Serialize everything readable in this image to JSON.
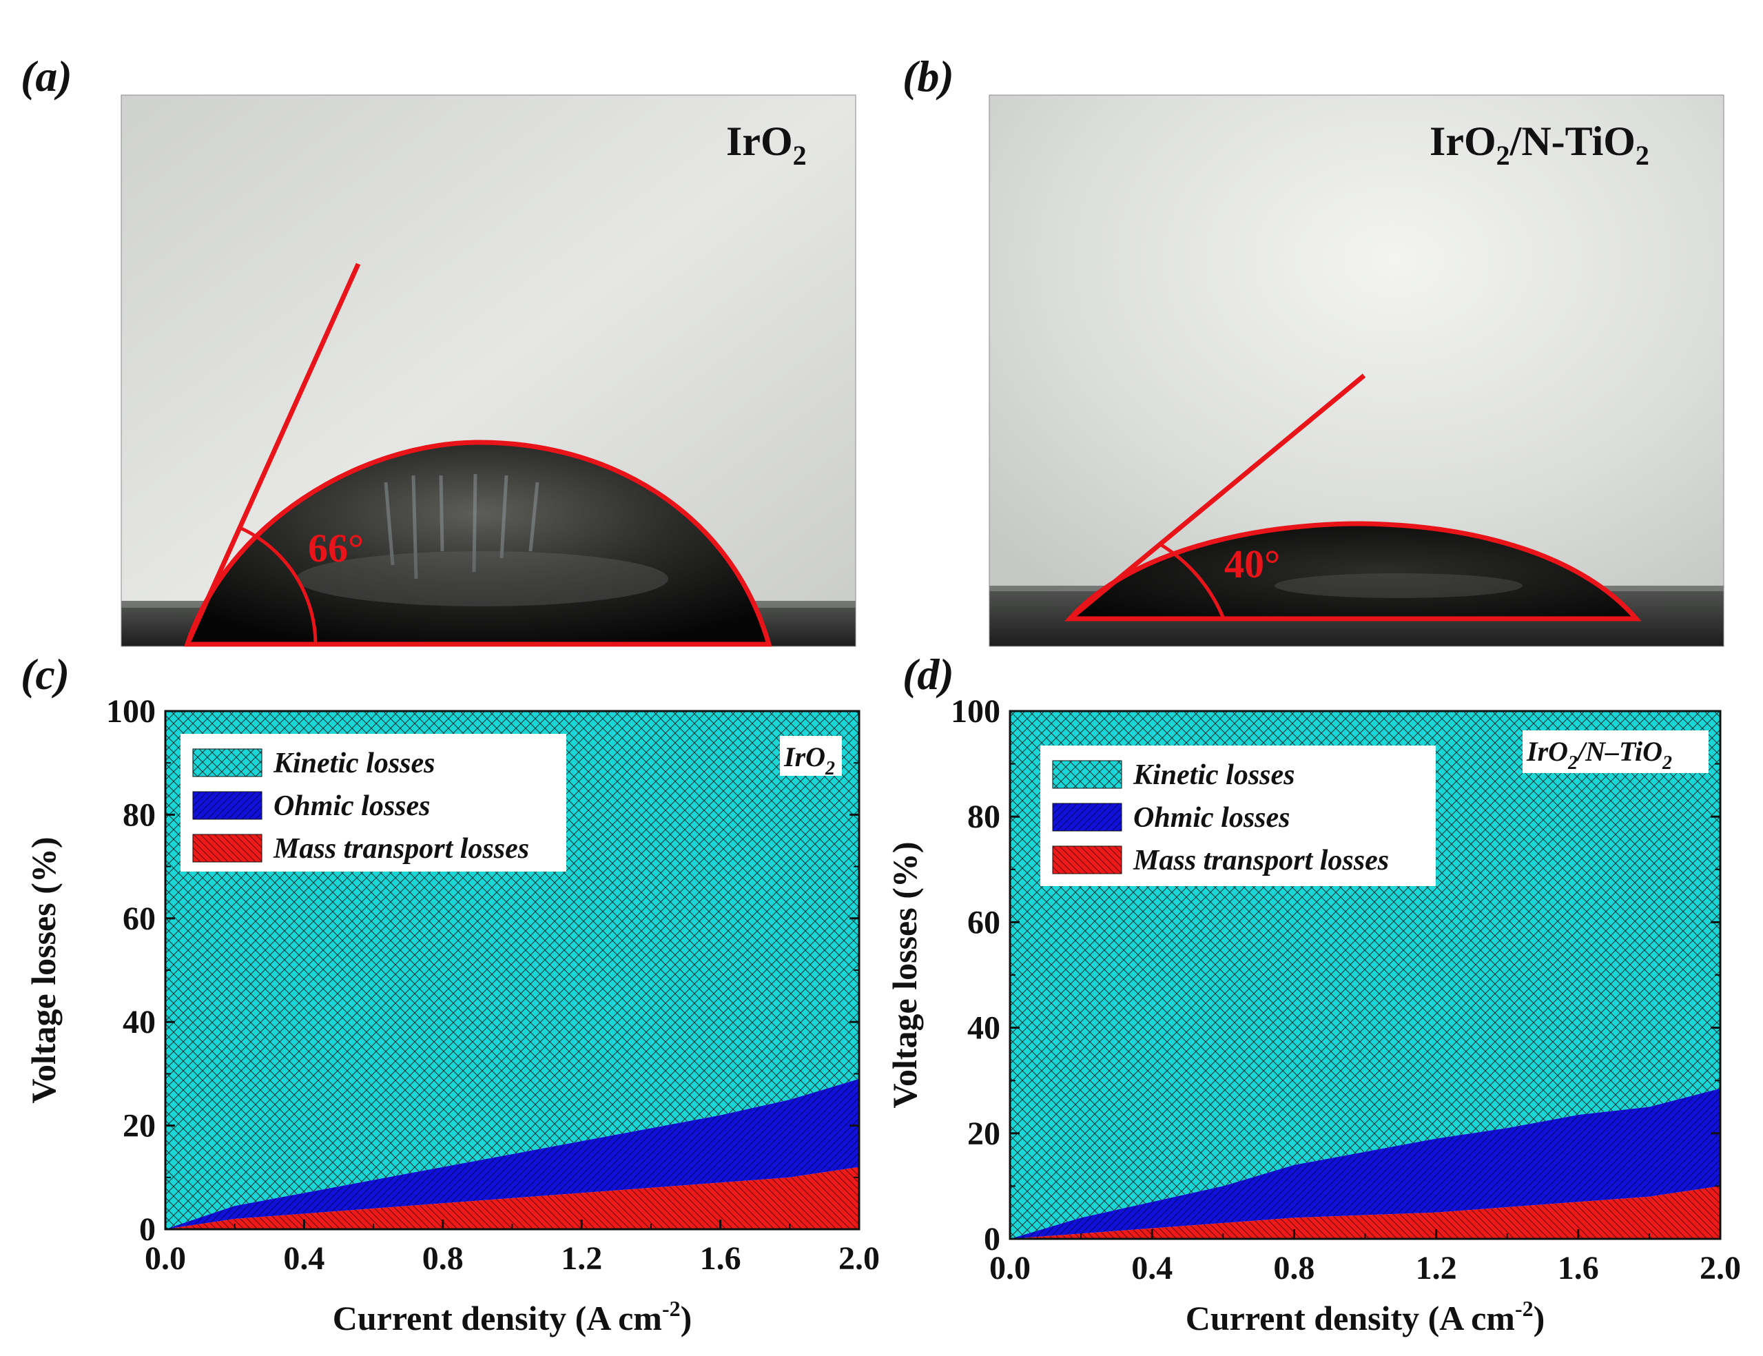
{
  "panels": {
    "a": {
      "label": "(a)",
      "title_main": "IrO",
      "title_sub": "2",
      "angle_label": "66°",
      "angle_deg": 66
    },
    "b": {
      "label": "(b)",
      "title_part1": "IrO",
      "title_sub1": "2",
      "title_part2": "/N-TiO",
      "title_sub2": "2",
      "angle_label": "40°",
      "angle_deg": 40
    },
    "c": {
      "label": "(c)"
    },
    "d": {
      "label": "(d)"
    }
  },
  "colors": {
    "kinetic": "#1ad6d6",
    "ohmic": "#1010d8",
    "mass": "#ee1a1a",
    "annotation": "#e8141a",
    "background_photo": "#d8dad9",
    "droplet": "#0c0c0c"
  },
  "legend_labels": {
    "kinetic": "Kinetic losses",
    "ohmic": "Ohmic losses",
    "mass": "Mass transport losses"
  },
  "chart_data": [
    {
      "type": "area",
      "id": "c",
      "inset_label_main": "IrO",
      "inset_label_sub": "2",
      "xlabel_main": "Current  density (A cm",
      "xlabel_sup": "-2",
      "xlabel_end": ")",
      "ylabel": "Voltage losses (%)",
      "xlim": [
        0.0,
        2.0
      ],
      "ylim": [
        0,
        100
      ],
      "xticks": [
        "0.0",
        "0.4",
        "0.8",
        "1.2",
        "1.6",
        "2.0"
      ],
      "yticks": [
        "0",
        "20",
        "40",
        "60",
        "80",
        "100"
      ],
      "legend_position": "top-left",
      "x": [
        0.0,
        0.2,
        0.4,
        0.6,
        0.8,
        1.0,
        1.2,
        1.4,
        1.6,
        1.8,
        2.0
      ],
      "series": [
        {
          "name": "Mass transport losses",
          "values": [
            0,
            2,
            3,
            4,
            5,
            6,
            7,
            8,
            9,
            10,
            12
          ]
        },
        {
          "name": "Ohmic losses",
          "values": [
            0,
            2.5,
            4,
            5.5,
            7,
            8.5,
            10,
            11.5,
            13,
            15,
            17
          ]
        },
        {
          "name": "Kinetic losses",
          "values": [
            100,
            95.5,
            93,
            90.5,
            88,
            85.5,
            83,
            80.5,
            78,
            75,
            71
          ]
        }
      ]
    },
    {
      "type": "area",
      "id": "d",
      "inset_label_main1": "IrO",
      "inset_label_sub1": "2",
      "inset_label_main2": "/N–TiO",
      "inset_label_sub2": "2",
      "xlabel_main": "Current  density (A cm",
      "xlabel_sup": "-2",
      "xlabel_end": ")",
      "ylabel": "Voltage losses (%)",
      "xlim": [
        0.0,
        2.0
      ],
      "ylim": [
        0,
        100
      ],
      "xticks": [
        "0.0",
        "0.4",
        "0.8",
        "1.2",
        "1.6",
        "2.0"
      ],
      "yticks": [
        "0",
        "20",
        "40",
        "60",
        "80",
        "100"
      ],
      "legend_position": "top-left",
      "x": [
        0.0,
        0.2,
        0.4,
        0.6,
        0.8,
        1.0,
        1.2,
        1.4,
        1.6,
        1.8,
        2.0
      ],
      "series": [
        {
          "name": "Mass transport losses",
          "values": [
            0,
            1,
            2,
            3,
            4,
            4.5,
            5,
            6,
            7,
            8,
            10
          ]
        },
        {
          "name": "Ohmic losses",
          "values": [
            0,
            3,
            5,
            7,
            10,
            12,
            14,
            15,
            16.5,
            17,
            18.5
          ]
        },
        {
          "name": "Kinetic losses",
          "values": [
            100,
            96,
            93,
            90,
            86,
            83.5,
            81,
            79,
            76.5,
            75,
            71.5
          ]
        }
      ]
    }
  ]
}
